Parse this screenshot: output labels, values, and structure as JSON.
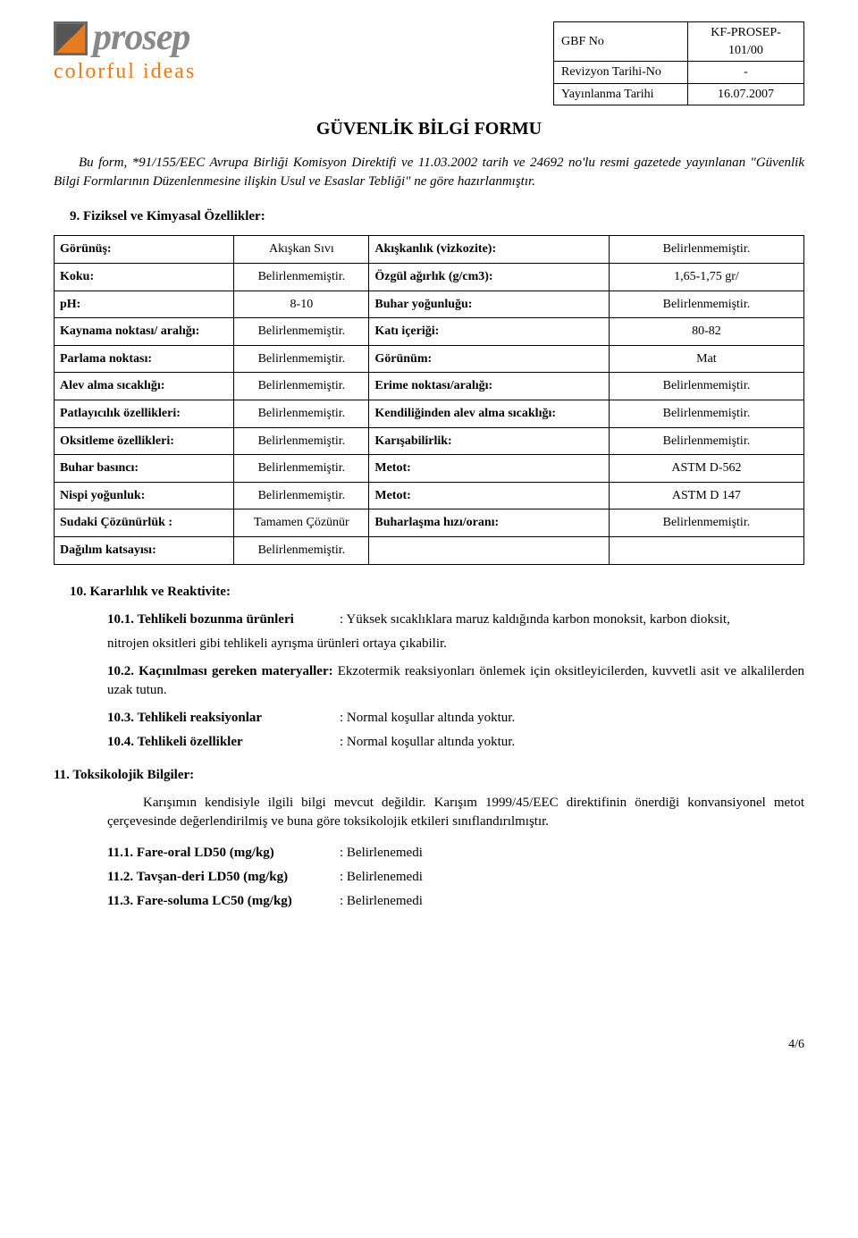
{
  "logo": {
    "name": "prosep",
    "tagline": "colorful ideas"
  },
  "meta": {
    "gbf_no_label": "GBF No",
    "gbf_no_value": "KF-PROSEP-101/00",
    "rev_label": "Revizyon Tarihi-No",
    "rev_value": "-",
    "pub_label": "Yayınlanma Tarihi",
    "pub_value": "16.07.2007"
  },
  "title": "GÜVENLİK BİLGİ FORMU",
  "intro": "Bu form, *91/155/EEC Avrupa Birliği Komisyon Direktifi ve 11.03.2002 tarih ve 24692 no'lu resmi gazetede yayınlanan \"Güvenlik Bilgi Formlarının Düzenlenmesine ilişkin Usul ve Esaslar Tebliği\" ne göre hazırlanmıştır.",
  "section9_heading": "9. Fiziksel ve Kimyasal Özellikler:",
  "props": [
    {
      "l1": "Görünüş:",
      "v1": "Akışkan Sıvı",
      "l2": "Akışkanlık (vizkozite):",
      "v2": "Belirlenmemiştir."
    },
    {
      "l1": "Koku:",
      "v1": "Belirlenmemiştir.",
      "l2": "Özgül ağırlık (g/cm3):",
      "v2": "1,65-1,75 gr/"
    },
    {
      "l1": "pH:",
      "v1": "8-10",
      "l2": "Buhar yoğunluğu:",
      "v2": "Belirlenmemiştir."
    },
    {
      "l1": "Kaynama noktası/ aralığı:",
      "v1": "Belirlenmemiştir.",
      "l2": "Katı içeriği:",
      "v2": "80-82"
    },
    {
      "l1": "Parlama noktası:",
      "v1": "Belirlenmemiştir.",
      "l2": "Görünüm:",
      "v2": "Mat"
    },
    {
      "l1": "Alev alma sıcaklığı:",
      "v1": "Belirlenmemiştir.",
      "l2": "Erime noktası/aralığı:",
      "v2": "Belirlenmemiştir."
    },
    {
      "l1": "Patlayıcılık özellikleri:",
      "v1": "Belirlenmemiştir.",
      "l2": "Kendiliğinden alev alma sıcaklığı:",
      "v2": "Belirlenmemiştir."
    },
    {
      "l1": "Oksitleme özellikleri:",
      "v1": "Belirlenmemiştir.",
      "l2": "Karışabilirlik:",
      "v2": "Belirlenmemiştir."
    },
    {
      "l1": "Buhar basıncı:",
      "v1": "Belirlenmemiştir.",
      "l2": "Metot:",
      "v2": "ASTM D-562"
    },
    {
      "l1": "Nispi yoğunluk:",
      "v1": "Belirlenmemiştir.",
      "l2": "Metot:",
      "v2": "ASTM D 147"
    },
    {
      "l1": "Sudaki Çözünürlük :",
      "v1": "Tamamen Çözünür",
      "l2": "Buharlaşma hızı/oranı:",
      "v2": "Belirlenmemiştir."
    },
    {
      "l1": "Dağılım katsayısı:",
      "v1": "Belirlenmemiştir.",
      "l2": "",
      "v2": ""
    }
  ],
  "section10_heading": "10. Kararlılık ve Reaktivite:",
  "s10_1_k": "10.1. Tehlikeli bozunma ürünleri",
  "s10_1_v": ": Yüksek sıcaklıklara maruz kaldığında karbon monoksit, karbon dioksit,",
  "s10_1_extra": "nitrojen oksitleri  gibi tehlikeli ayrışma ürünleri ortaya çıkabilir.",
  "s10_2_lead": "10.2. Kaçınılması gereken materyaller:",
  "s10_2_rest": " Ekzotermik reaksiyonları önlemek için oksitleyicilerden, kuvvetli asit ve alkalilerden uzak tutun.",
  "s10_3_k": "10.3. Tehlikeli reaksiyonlar",
  "s10_3_v": ": Normal koşullar altında yoktur.",
  "s10_4_k": "10.4. Tehlikeli özellikler",
  "s10_4_v": ": Normal koşullar altında yoktur.",
  "section11_heading": "11. Toksikolojik Bilgiler:",
  "s11_para": "Karışımın kendisiyle ilgili bilgi mevcut değildir. Karışım 1999/45/EEC direktifinin önerdiği konvansiyonel metot çerçevesinde değerlendirilmiş ve buna göre toksikolojik etkileri sınıflandırılmıştır.",
  "s11_1_k": "11.1. Fare-oral LD50 (mg/kg)",
  "s11_1_v": ": Belirlenemedi",
  "s11_2_k": "11.2. Tavşan-deri LD50 (mg/kg)",
  "s11_2_v": ": Belirlenemedi",
  "s11_3_k": "11.3. Fare-soluma LC50 (mg/kg)",
  "s11_3_v": ": Belirlenemedi",
  "page_number": "4/6"
}
